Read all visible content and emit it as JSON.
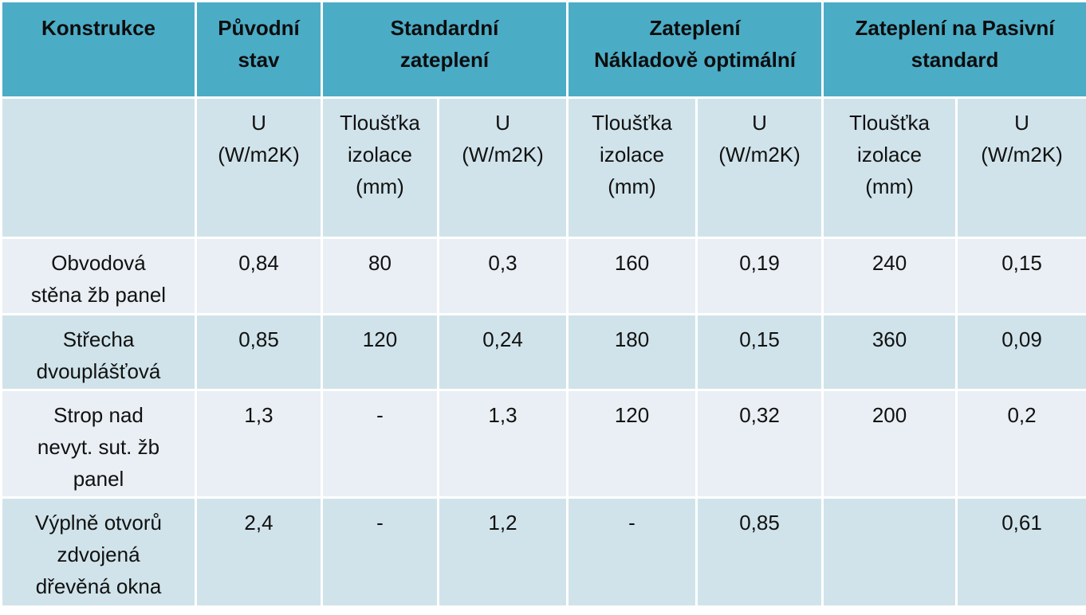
{
  "headers": {
    "konstrukce": "Konstrukce",
    "puvodni": "Původní\nstav",
    "standardni": "Standardní\nzateplení",
    "optimalni": "Zateplení\nNákladově optimální",
    "pasivni": "Zateplení na Pasivní\nstandard"
  },
  "subheaders": {
    "u": "U\n(W/m2K)",
    "tloustka": "Tloušťka\nizolace\n(mm)"
  },
  "rows": [
    {
      "name": "Obvodová\nstěna žb panel",
      "puvodni_u": "0,84",
      "std_tl": "80",
      "std_u": "0,3",
      "opt_tl": "160",
      "opt_u": "0,19",
      "pas_tl": "240",
      "pas_u": "0,15"
    },
    {
      "name": "Střecha\ndvouplášťová",
      "puvodni_u": "0,85",
      "std_tl": "120",
      "std_u": "0,24",
      "opt_tl": "180",
      "opt_u": "0,15",
      "pas_tl": "360",
      "pas_u": "0,09"
    },
    {
      "name": "Strop nad\nnevyt. sut. žb\npanel",
      "puvodni_u": "1,3",
      "std_tl": "-",
      "std_u": "1,3",
      "opt_tl": "120",
      "opt_u": "0,32",
      "pas_tl": "200",
      "pas_u": "0,2"
    },
    {
      "name": "Výplně otvorů\nzdvojená\ndřevěná okna",
      "puvodni_u": "2,4",
      "std_tl": "-",
      "std_u": "1,2",
      "opt_tl": "-",
      "opt_u": "0,85",
      "pas_tl": "",
      "pas_u": "0,61"
    }
  ],
  "colors": {
    "header_bg": "#4bacc6",
    "row_dark": "#d0e3ea",
    "row_light": "#e9eff4"
  }
}
